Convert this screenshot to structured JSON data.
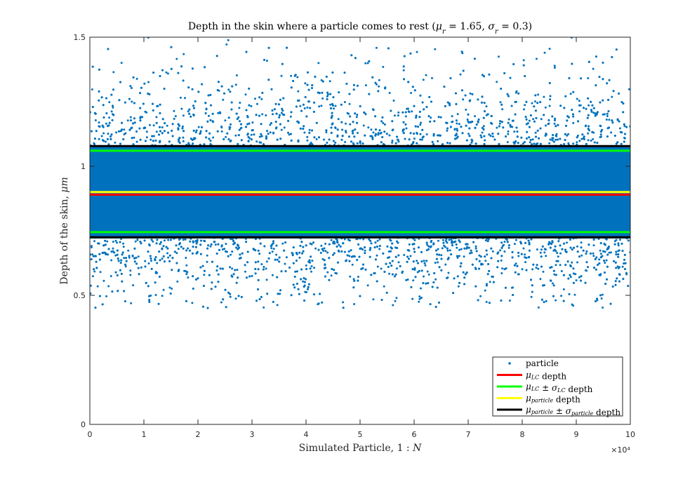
{
  "chart_data": {
    "type": "scatter",
    "title": "Depth in the skin where a particle comes to rest (μr = 1.65, σr = 0.3)",
    "xlabel": "Simulated Particle, 1 : N",
    "ylabel": "Depth of the skin, μm",
    "x_exponent_label": "×10⁴",
    "xlim": [
      0,
      100000
    ],
    "ylim": [
      0,
      1.5
    ],
    "x_ticks": [
      0,
      10000,
      20000,
      30000,
      40000,
      50000,
      60000,
      70000,
      80000,
      90000,
      100000
    ],
    "x_tick_labels": [
      "0",
      "1",
      "2",
      "3",
      "4",
      "5",
      "6",
      "7",
      "8",
      "9",
      "10"
    ],
    "y_ticks": [
      0,
      0.5,
      1,
      1.5
    ],
    "y_tick_labels": [
      "0",
      "0.5",
      "1",
      "1.5"
    ],
    "particle_cloud": {
      "name": "particle",
      "count_range": [
        0,
        100000
      ],
      "depth_range": [
        0.45,
        1.5
      ],
      "dense_band": [
        0.72,
        1.08
      ],
      "color": "#0072BD"
    },
    "series": [
      {
        "name": "μLC depth",
        "y": 0.89,
        "color": "#ff0000"
      },
      {
        "name": "μLC ± σLC depth",
        "y": [
          0.745,
          1.06
        ],
        "color": "#00ff00"
      },
      {
        "name": "μparticle depth",
        "y": 0.9,
        "color": "#ffff00"
      },
      {
        "name": "μparticle ± σparticle depth",
        "y": [
          0.725,
          1.078
        ],
        "color": "#000000"
      }
    ],
    "legend_position": "bottom-right",
    "grid": false
  }
}
